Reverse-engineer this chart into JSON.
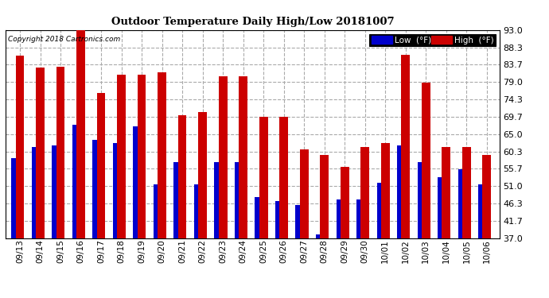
{
  "title": "Outdoor Temperature Daily High/Low 20181007",
  "copyright": "Copyright 2018 Cartronics.com",
  "legend_low": "Low  (°F)",
  "legend_high": "High  (°F)",
  "low_color": "#0000cc",
  "high_color": "#cc0000",
  "bg_color": "#ffffff",
  "plot_bg_color": "#ffffff",
  "grid_color": "#aaaaaa",
  "ylim": [
    37.0,
    93.0
  ],
  "yticks": [
    37.0,
    41.7,
    46.3,
    51.0,
    55.7,
    60.3,
    65.0,
    69.7,
    74.3,
    79.0,
    83.7,
    88.3,
    93.0
  ],
  "dates": [
    "09/13",
    "09/14",
    "09/15",
    "09/16",
    "09/17",
    "09/18",
    "09/19",
    "09/20",
    "09/21",
    "09/22",
    "09/23",
    "09/24",
    "09/25",
    "09/26",
    "09/27",
    "09/28",
    "09/29",
    "09/30",
    "10/01",
    "10/02",
    "10/03",
    "10/04",
    "10/05",
    "10/06"
  ],
  "highs": [
    86.0,
    82.9,
    83.0,
    93.2,
    76.1,
    81.0,
    81.0,
    81.5,
    70.0,
    71.0,
    80.5,
    80.5,
    69.7,
    69.7,
    61.0,
    59.5,
    56.3,
    61.5,
    62.5,
    86.2,
    78.8,
    61.5,
    61.5,
    59.5
  ],
  "lows": [
    58.5,
    61.5,
    62.0,
    67.5,
    63.5,
    62.5,
    67.0,
    51.5,
    57.5,
    51.5,
    57.5,
    57.5,
    48.0,
    47.0,
    46.0,
    38.0,
    47.5,
    47.5,
    52.0,
    62.0,
    57.5,
    53.5,
    55.5,
    51.5
  ]
}
